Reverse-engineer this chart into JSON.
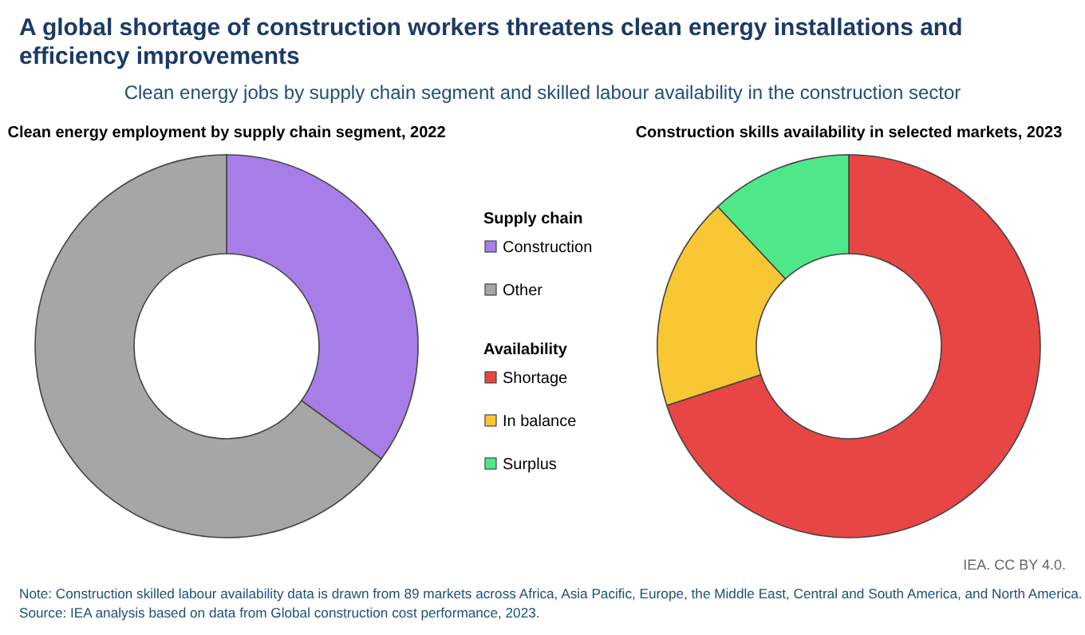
{
  "chart_data": [
    {
      "type": "other",
      "title": "A global shortage of construction workers threatens clean energy installations and efficiency improvements",
      "subtitle": "Clean energy jobs by supply chain segment and skilled labour availability in the construction sector",
      "annotations": [
        "IEA. CC BY 4.0.",
        "Note: Construction skilled labour availability data is drawn from 89 markets across Africa, Asia Pacific, Europe, the Middle East, Central and South America, and North America.",
        "Source: IEA analysis based on data from Global construction cost performance, 2023."
      ]
    },
    {
      "type": "donut",
      "title": "Clean energy employment by supply chain segment, 2022",
      "legend_title": "Supply chain",
      "legend": "right",
      "categories": [
        "Construction",
        "Other"
      ],
      "values": [
        35,
        65
      ],
      "colors": [
        "#a77ee8",
        "#a6a6a6"
      ]
    },
    {
      "type": "donut",
      "title": "Construction skills availability in selected markets, 2023",
      "legend_title": "Availability",
      "legend": "left",
      "categories": [
        "Shortage",
        "In balance",
        "Surplus"
      ],
      "values": [
        70,
        18,
        12
      ],
      "colors": [
        "#e84545",
        "#f9c734",
        "#4ee88a"
      ]
    }
  ]
}
